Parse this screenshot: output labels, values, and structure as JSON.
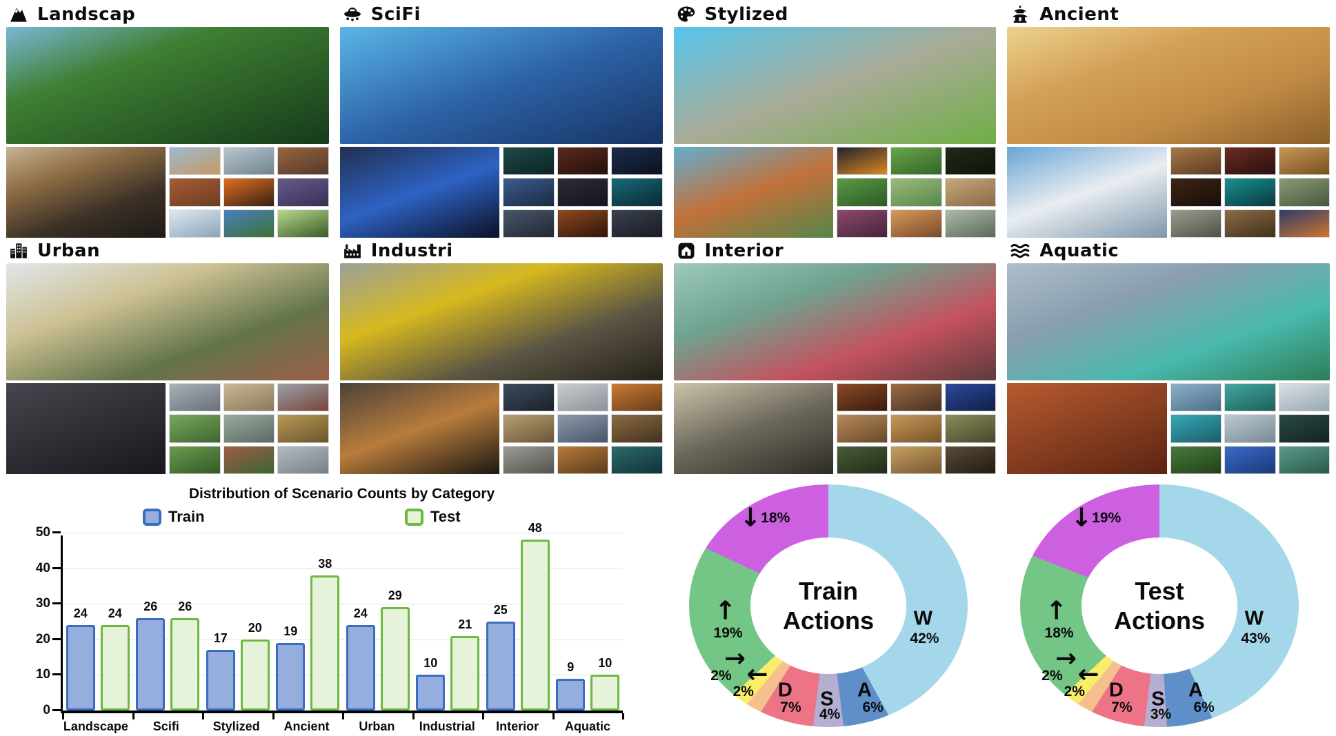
{
  "montage": {
    "categories": [
      {
        "title": "Landscap",
        "icon": "mountain-icon",
        "hero": [
          "#79b8d6",
          "#3f7f33",
          "#2a5d26",
          "#173a1c"
        ],
        "medium": [
          "#c6b492",
          "#8a6a43",
          "#3a3026",
          "#1d1a16"
        ],
        "thumbs": [
          [
            "#9db9d2",
            "#c49a62"
          ],
          [
            "#b9c6cf",
            "#6f838f"
          ],
          [
            "#96663f",
            "#54392a"
          ],
          [
            "#a55c35",
            "#6e3c22"
          ],
          [
            "#e07020",
            "#381f16"
          ],
          [
            "#675a8d",
            "#383052"
          ],
          [
            "#dfe9f1",
            "#8ba4b9"
          ],
          [
            "#4a7ec0",
            "#3c7333"
          ],
          [
            "#b9d98f",
            "#3a5a26"
          ]
        ]
      },
      {
        "title": "SciFi",
        "icon": "ufo-icon",
        "hero": [
          "#5ab6e8",
          "#2d63a8",
          "#173463"
        ],
        "medium": [
          "#20304f",
          "#2e62c4",
          "#0a1124"
        ],
        "thumbs": [
          [
            "#1d4a49",
            "#0c2424"
          ],
          [
            "#5c2b20",
            "#220f0b"
          ],
          [
            "#1c2b4a",
            "#0b1322"
          ],
          [
            "#3c5c8c",
            "#1a2a44"
          ],
          [
            "#2c2c38",
            "#14141c"
          ],
          [
            "#176a7a",
            "#0a2a33"
          ],
          [
            "#4a5668",
            "#202834"
          ],
          [
            "#8c4a20",
            "#301409"
          ],
          [
            "#3a4250",
            "#171b22"
          ]
        ]
      },
      {
        "title": "Stylized",
        "icon": "palette-icon",
        "hero": [
          "#56c5ec",
          "#a9ab97",
          "#6fae45"
        ],
        "medium": [
          "#63aed0",
          "#c2713a",
          "#55864a"
        ],
        "thumbs": [
          [
            "#23222c",
            "#d98a22"
          ],
          [
            "#68a648",
            "#33652a"
          ],
          [
            "#1e2a1a",
            "#0d150b"
          ],
          [
            "#5b9a45",
            "#2c5a24"
          ],
          [
            "#9eba7d",
            "#55884a"
          ],
          [
            "#c7a77a",
            "#8a6a45"
          ],
          [
            "#8c4a6c",
            "#46223a"
          ],
          [
            "#d8995c",
            "#7a4a2a"
          ],
          [
            "#adb9a9",
            "#5a6a58"
          ]
        ]
      },
      {
        "title": "Ancient",
        "icon": "pagoda-icon",
        "hero": [
          "#ecd28c",
          "#d4a159",
          "#c08a45",
          "#8a5f2a"
        ],
        "medium": [
          "#68a5d6",
          "#e9edf1",
          "#7d97ab"
        ],
        "thumbs": [
          [
            "#a87848",
            "#5a3c22"
          ],
          [
            "#6c2b22",
            "#2a100e"
          ],
          [
            "#c79857",
            "#77501f"
          ],
          [
            "#3c2517",
            "#170e07"
          ],
          [
            "#189090",
            "#093a40"
          ],
          [
            "#8a9a78",
            "#47573c"
          ],
          [
            "#9c9c8c",
            "#50504a"
          ],
          [
            "#8c6c45",
            "#40301c"
          ],
          [
            "#2c3c6c",
            "#d1752c"
          ]
        ]
      },
      {
        "title": "Urban",
        "icon": "city-icon",
        "hero": [
          "#e0e7e9",
          "#cdc194",
          "#63744a",
          "#9b5f49"
        ],
        "medium": [
          "#46464e",
          "#17171c"
        ],
        "thumbs": [
          [
            "#a9b1b9",
            "#697077"
          ],
          [
            "#c8b898",
            "#8a7a5a"
          ],
          [
            "#9aa0a8",
            "#79443a"
          ],
          [
            "#7aa85c",
            "#3e6531"
          ],
          [
            "#9cab9f",
            "#596a60"
          ],
          [
            "#b79a55",
            "#6b542c"
          ],
          [
            "#6c9c4c",
            "#34572a"
          ],
          [
            "#9c5c48",
            "#3e6531"
          ],
          [
            "#b2bac2",
            "#777f87"
          ]
        ]
      },
      {
        "title": "Industri",
        "icon": "factory-icon",
        "hero": [
          "#9aa09a",
          "#d7b91f",
          "#5a5444",
          "#262118"
        ],
        "medium": [
          "#4c423a",
          "#b87c3c",
          "#1c1713"
        ],
        "thumbs": [
          [
            "#3c4c5c",
            "#1a222b"
          ],
          [
            "#c9cdd1",
            "#8b9199"
          ],
          [
            "#c77c35",
            "#693c18"
          ],
          [
            "#b7a071",
            "#6a5638"
          ],
          [
            "#8b99a9",
            "#4a5668"
          ],
          [
            "#8b6b45",
            "#44321e"
          ],
          [
            "#9b9b95",
            "#54544e"
          ],
          [
            "#b77b3b",
            "#5b3a1a"
          ],
          [
            "#2b6b6b",
            "#113239"
          ]
        ]
      },
      {
        "title": "Interior",
        "icon": "home-icon",
        "hero": [
          "#9ccabb",
          "#70a28f",
          "#c4525e",
          "#5e3b3b"
        ],
        "medium": [
          "#cbc3ab",
          "#6b675a",
          "#2e2c26"
        ],
        "thumbs": [
          [
            "#8c4a28",
            "#381b0d"
          ],
          [
            "#9c6c45",
            "#47301f"
          ],
          [
            "#2c4a9c",
            "#111f47"
          ],
          [
            "#b78b5b",
            "#684827"
          ],
          [
            "#c79a5b",
            "#775227"
          ],
          [
            "#8b8b5b",
            "#47472b"
          ],
          [
            "#4a5c3a",
            "#202c18"
          ],
          [
            "#c7a060",
            "#765630"
          ],
          [
            "#5b4a3a",
            "#221b11"
          ]
        ]
      },
      {
        "title": "Aquatic",
        "icon": "waves-icon",
        "hero": [
          "#aebfcb",
          "#8a9eae",
          "#49b9ae",
          "#2d7d55"
        ],
        "medium": [
          "#b75b30",
          "#5c2412"
        ],
        "thumbs": [
          [
            "#8cb0c8",
            "#4a7088"
          ],
          [
            "#3fa8a0",
            "#1e605b"
          ],
          [
            "#dae1e5",
            "#97a7af"
          ],
          [
            "#38a8b8",
            "#1a5e68"
          ],
          [
            "#bac9d1",
            "#7a8a94"
          ],
          [
            "#2b4a44",
            "#112320"
          ],
          [
            "#4a7a3b",
            "#21401b"
          ],
          [
            "#3a6ac8",
            "#1a3a7a"
          ],
          [
            "#5b9a8b",
            "#295a4a"
          ]
        ]
      }
    ]
  },
  "chart_data": [
    {
      "type": "bar",
      "title": "Distribution of Scenario Counts by Category",
      "categories": [
        "Landscape",
        "Scifi",
        "Stylized",
        "Ancient",
        "Urban",
        "Industrial",
        "Interior",
        "Aquatic"
      ],
      "series": [
        {
          "name": "Train",
          "values": [
            24,
            26,
            17,
            19,
            24,
            10,
            25,
            9
          ],
          "fill": "#96aedd",
          "border": "#3a6cc0"
        },
        {
          "name": "Test",
          "values": [
            24,
            26,
            20,
            38,
            29,
            21,
            48,
            10
          ],
          "fill": "#e6f3da",
          "border": "#6cb93f"
        }
      ],
      "xlabel": "",
      "ylabel": "",
      "ylim": [
        0,
        50
      ],
      "yticks": [
        0,
        10,
        20,
        30,
        40,
        50
      ],
      "grid": true,
      "legend_position": "top"
    },
    {
      "type": "donut",
      "title": "Train Actions",
      "title_lines": [
        "Train",
        "Actions"
      ],
      "legend_position": "labels-on-slices",
      "slices": [
        {
          "label": "W",
          "pct": 42,
          "pct_label": "42%",
          "color": "#a5d7ea"
        },
        {
          "label": "A",
          "pct": 6,
          "pct_label": "6%",
          "color": "#5e8fc9"
        },
        {
          "label": "S",
          "pct": 4,
          "pct_label": "4%",
          "color": "#b3aed2"
        },
        {
          "label": "D",
          "pct": 7,
          "pct_label": "7%",
          "color": "#ed7486"
        },
        {
          "label": "←",
          "pct": 2,
          "pct_label": "2%",
          "color": "#f5c08e"
        },
        {
          "label": "→",
          "pct": 2,
          "pct_label": "2%",
          "color": "#f8ee69"
        },
        {
          "label": "↑",
          "pct": 19,
          "pct_label": "19%",
          "color": "#74c687"
        },
        {
          "label": "↓",
          "pct": 18,
          "pct_label": "18%",
          "color": "#cd60e0"
        }
      ]
    },
    {
      "type": "donut",
      "title": "Test Actions",
      "title_lines": [
        "Test",
        "Actions"
      ],
      "legend_position": "labels-on-slices",
      "slices": [
        {
          "label": "W",
          "pct": 43,
          "pct_label": "43%",
          "color": "#a5d7ea"
        },
        {
          "label": "A",
          "pct": 6,
          "pct_label": "6%",
          "color": "#5e8fc9"
        },
        {
          "label": "S",
          "pct": 3,
          "pct_label": "3%",
          "color": "#b3aed2"
        },
        {
          "label": "D",
          "pct": 7,
          "pct_label": "7%",
          "color": "#ed7486"
        },
        {
          "label": "←",
          "pct": 2,
          "pct_label": "2%",
          "color": "#f5c08e"
        },
        {
          "label": "→",
          "pct": 2,
          "pct_label": "2%",
          "color": "#f8ee69"
        },
        {
          "label": "↑",
          "pct": 18,
          "pct_label": "18%",
          "color": "#74c687"
        },
        {
          "label": "↓",
          "pct": 19,
          "pct_label": "19%",
          "color": "#cd60e0"
        }
      ]
    }
  ]
}
